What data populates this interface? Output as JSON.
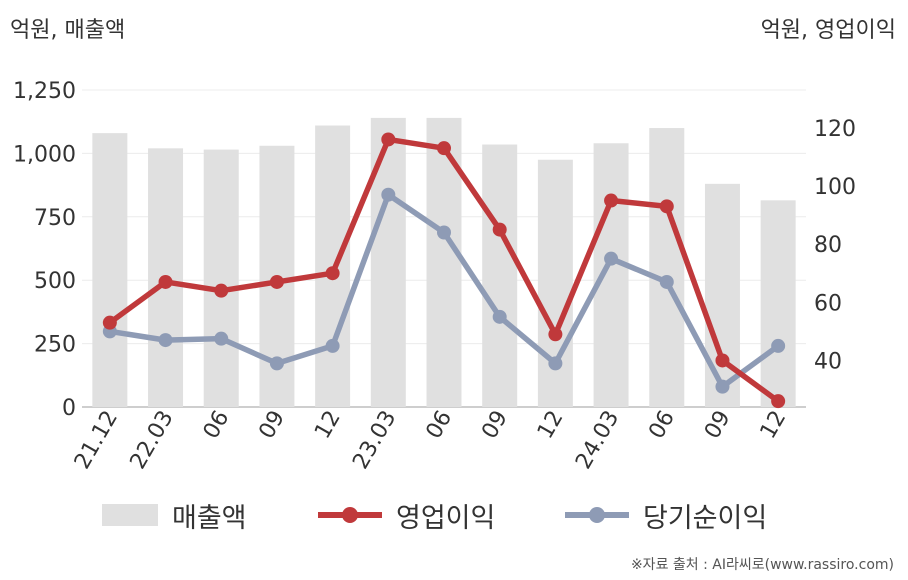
{
  "unit_left": "억원, 매출액",
  "unit_right": "억원, 영업이익",
  "source": "※자료 출처 : AI라씨로(www.rassiro.com)",
  "chart_data": {
    "type": "bar",
    "categories": [
      "21.12",
      "22.03",
      "06",
      "09",
      "12",
      "23.03",
      "06",
      "09",
      "12",
      "24.03",
      "06",
      "09",
      "12"
    ],
    "y_left": {
      "ylim": [
        0,
        1250
      ],
      "ticks": [
        "0",
        "250",
        "500",
        "750",
        "1,000",
        "1,250"
      ],
      "tick_values": [
        0,
        250,
        500,
        750,
        1000,
        1250
      ]
    },
    "y_right": {
      "ylim": [
        24,
        133
      ],
      "ticks": [
        "40",
        "60",
        "80",
        "100",
        "120"
      ],
      "tick_values": [
        40,
        60,
        80,
        100,
        120
      ]
    },
    "series": [
      {
        "name": "매출액",
        "type": "bar",
        "axis": "left",
        "color": "#e0e0e0",
        "values": [
          1080,
          1020,
          1015,
          1030,
          1110,
          1140,
          1140,
          1035,
          975,
          1040,
          1100,
          880,
          815
        ]
      },
      {
        "name": "영업이익",
        "type": "line",
        "axis": "right",
        "color": "#c0393b",
        "values": [
          53,
          67,
          64,
          67,
          70,
          116,
          113,
          85,
          49,
          95,
          93,
          40,
          26
        ]
      },
      {
        "name": "당기순이익",
        "type": "line",
        "axis": "right",
        "color": "#8e9bb5",
        "values": [
          50,
          47,
          47.5,
          39,
          45,
          97,
          84,
          55,
          39,
          75,
          67,
          31,
          45
        ]
      }
    ],
    "grid": true,
    "legend_position": "bottom"
  }
}
